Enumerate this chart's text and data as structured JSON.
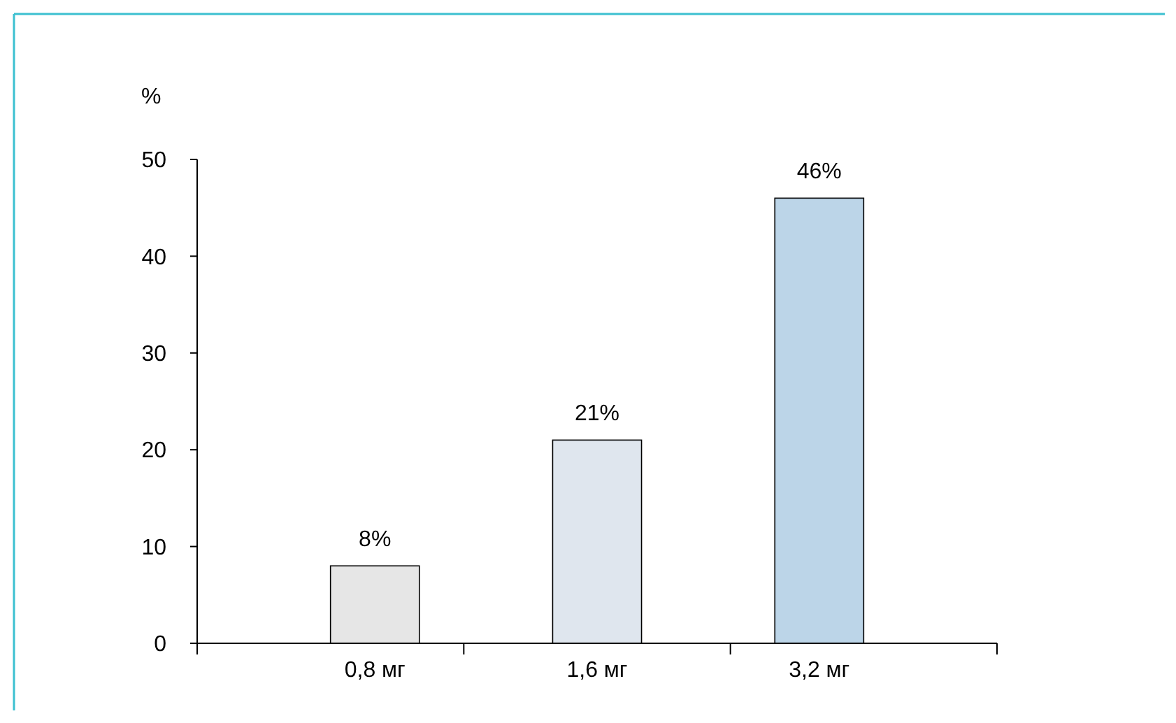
{
  "chart_data": {
    "type": "bar",
    "ylabel": "%",
    "categories": [
      "0,8 мг",
      "1,6 мг",
      "3,2 мг"
    ],
    "values": [
      8,
      21,
      46
    ],
    "colors": [
      "#e6e6e6",
      "#dfe6ee",
      "#bcd5e8"
    ],
    "value_labels": [
      "8%",
      "21%",
      "46%"
    ],
    "ylim": [
      0,
      50
    ],
    "yticks": [
      0,
      10,
      20,
      30,
      40,
      50
    ]
  }
}
